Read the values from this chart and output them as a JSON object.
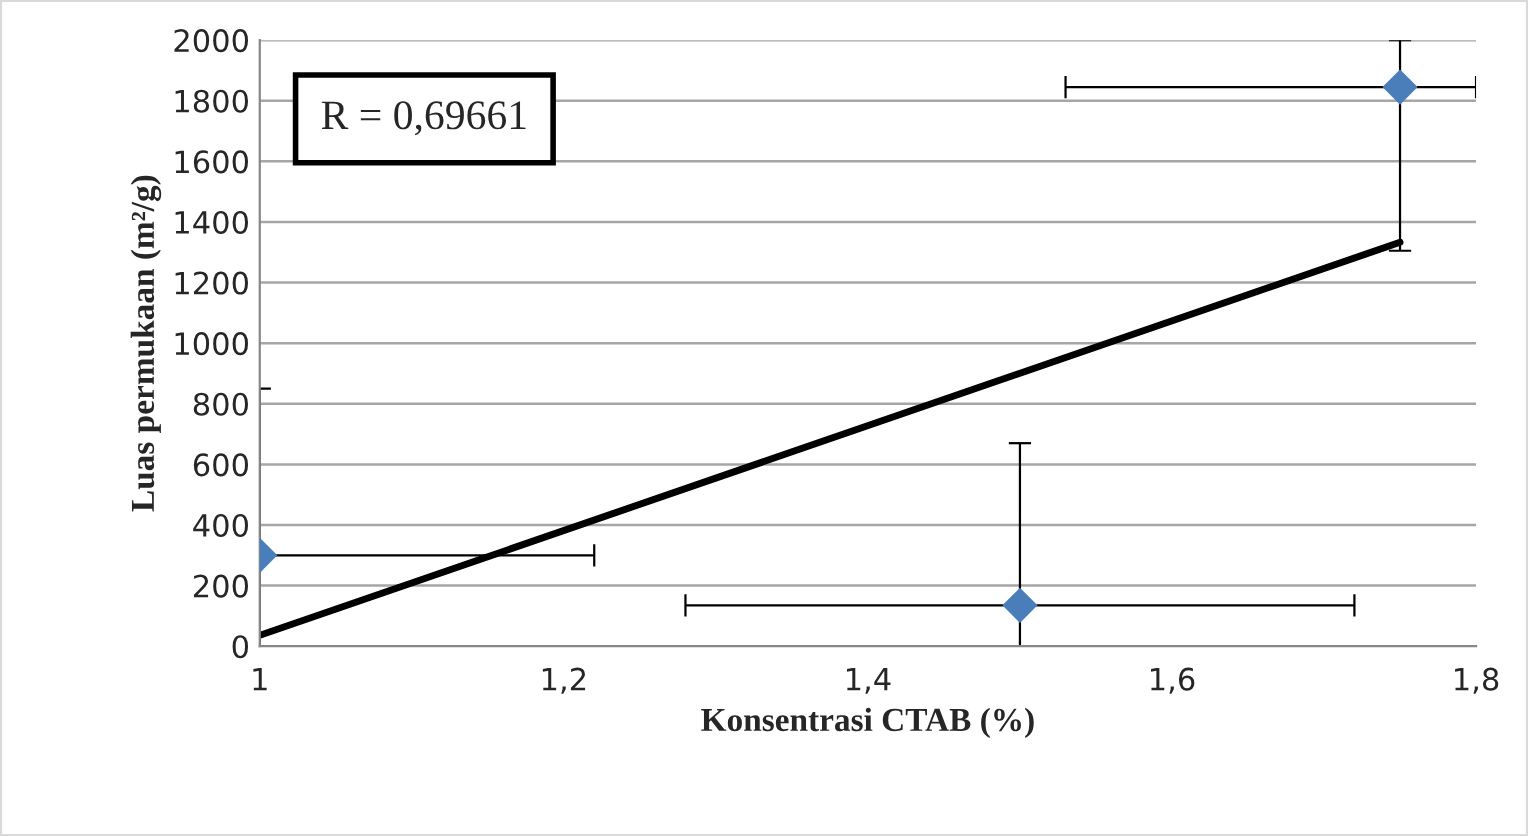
{
  "chart_data": {
    "type": "scatter",
    "xlabel": "Konsentrasi CTAB (%)",
    "ylabel": "Luas permukaan (m²/g)",
    "xlim": [
      1,
      1.8
    ],
    "xticks": [
      {
        "value": 1,
        "label": "1"
      },
      {
        "value": 1.2,
        "label": "1,2"
      },
      {
        "value": 1.4,
        "label": "1,4"
      },
      {
        "value": 1.6,
        "label": "1,6"
      },
      {
        "value": 1.8,
        "label": "1,8"
      }
    ],
    "ylim": [
      0,
      2000
    ],
    "yticks": [
      0,
      200,
      400,
      600,
      800,
      1000,
      1200,
      1400,
      1600,
      1800,
      2000
    ],
    "grid": "y",
    "annotations": [
      "R = 0,69661"
    ],
    "series": [
      {
        "color": "#4a7ebb",
        "marker": "diamond",
        "x": [
          1,
          1.5,
          1.75
        ],
        "values": [
          300,
          135,
          1845
        ],
        "errors": [
          [
            0,
            850
          ],
          [
            0,
            670
          ],
          [
            1305,
            2000
          ]
        ],
        "xerrors": [
          [
            1,
            1.22
          ],
          [
            1.28,
            1.72
          ],
          [
            1.53,
            1.8
          ]
        ]
      },
      {
        "type": "line",
        "color": "#000000",
        "marker": "none",
        "line_style": "solid",
        "x": [
          1,
          1.75
        ],
        "values": [
          36,
          1333
        ]
      }
    ]
  }
}
